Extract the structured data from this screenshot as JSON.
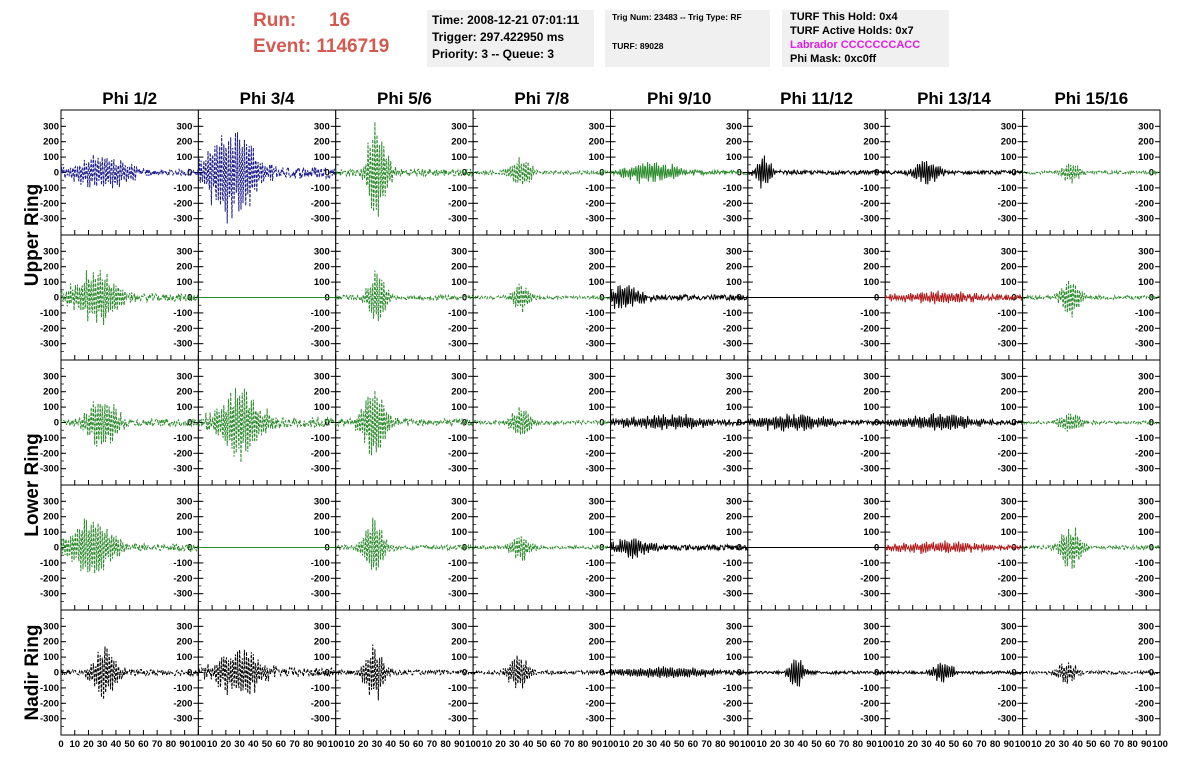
{
  "header": {
    "run_label": "Run:",
    "run_value": "16",
    "event_label": "Event:",
    "event_value": "1146719",
    "time": "Time: 2008-12-21 07:01:11",
    "trigger": "Trigger: 297.422950 ms",
    "priority": "Priority: 3 -- Queue: 3",
    "trig_num": "Trig Num: 23483 -- Trig Type: RF",
    "turf": "TURF: 89028",
    "turf_hold": "TURF This Hold: 0x4",
    "turf_active": "TURF Active Holds: 0x7",
    "labrador": "Labrador CCCCCCCACC",
    "phi_mask": "Phi Mask: 0xc0ff"
  },
  "colors": {
    "title_red": "#d45a50",
    "magenta": "#e020e0",
    "navy": "#1a1a8c",
    "green": "#2a8a2a",
    "black": "#000000",
    "red": "#b01a1a"
  },
  "chart_data": {
    "type": "line",
    "columns": [
      "Phi 1/2",
      "Phi 3/4",
      "Phi 5/6",
      "Phi 7/8",
      "Phi 9/10",
      "Phi 11/12",
      "Phi 13/14",
      "Phi 15/16"
    ],
    "rows": [
      "Upper Ring",
      "Upper Ring",
      "Lower Ring",
      "Lower Ring",
      "Nadir Ring"
    ],
    "row_labels": [
      "Upper Ring",
      "Lower Ring",
      "Nadir Ring"
    ],
    "ylim": [
      -380,
      380
    ],
    "yticks": [
      "300",
      "200",
      "100",
      "0",
      "-100",
      "-200",
      "-300"
    ],
    "xlim": [
      0,
      100
    ],
    "xticks": [
      "0",
      "10",
      "20",
      "30",
      "40",
      "50",
      "60",
      "70",
      "80",
      "90",
      "100"
    ],
    "panels": [
      [
        {
          "color": "navy",
          "dash": true,
          "amp": 130,
          "center": 30,
          "width": 22,
          "noise": 40
        },
        {
          "color": "navy",
          "dash": true,
          "amp": 340,
          "center": 25,
          "width": 20,
          "noise": 80
        },
        {
          "color": "green",
          "dash": true,
          "amp": 360,
          "center": 30,
          "width": 8,
          "noise": 50
        },
        {
          "color": "green",
          "dash": true,
          "amp": 120,
          "center": 35,
          "width": 8,
          "noise": 25
        },
        {
          "color": "green",
          "dash": false,
          "amp": 80,
          "center": 30,
          "width": 20,
          "noise": 30
        },
        {
          "color": "black",
          "dash": false,
          "amp": 120,
          "center": 12,
          "width": 6,
          "noise": 25
        },
        {
          "color": "black",
          "dash": false,
          "amp": 90,
          "center": 30,
          "width": 10,
          "noise": 25
        },
        {
          "color": "green",
          "dash": true,
          "amp": 70,
          "center": 35,
          "width": 8,
          "noise": 20
        }
      ],
      [
        {
          "color": "green",
          "dash": true,
          "amp": 200,
          "center": 25,
          "width": 18,
          "noise": 50
        },
        {
          "color": "green",
          "dash": false,
          "amp": 0,
          "center": 30,
          "width": 8,
          "noise": 0
        },
        {
          "color": "green",
          "dash": true,
          "amp": 200,
          "center": 30,
          "width": 7,
          "noise": 30
        },
        {
          "color": "green",
          "dash": true,
          "amp": 100,
          "center": 35,
          "width": 8,
          "noise": 20
        },
        {
          "color": "black",
          "dash": false,
          "amp": 90,
          "center": 10,
          "width": 15,
          "noise": 35
        },
        {
          "color": "black",
          "dash": false,
          "amp": 0,
          "center": 30,
          "width": 8,
          "noise": 0
        },
        {
          "color": "red",
          "dash": false,
          "amp": 40,
          "center": 40,
          "width": 40,
          "noise": 25
        },
        {
          "color": "green",
          "dash": true,
          "amp": 140,
          "center": 35,
          "width": 8,
          "noise": 25
        }
      ],
      [
        {
          "color": "green",
          "dash": true,
          "amp": 200,
          "center": 30,
          "width": 12,
          "noise": 50
        },
        {
          "color": "green",
          "dash": true,
          "amp": 240,
          "center": 30,
          "width": 18,
          "noise": 70
        },
        {
          "color": "green",
          "dash": true,
          "amp": 250,
          "center": 28,
          "width": 10,
          "noise": 50
        },
        {
          "color": "green",
          "dash": true,
          "amp": 120,
          "center": 35,
          "width": 8,
          "noise": 25
        },
        {
          "color": "black",
          "dash": false,
          "amp": 50,
          "center": 40,
          "width": 40,
          "noise": 25
        },
        {
          "color": "black",
          "dash": false,
          "amp": 60,
          "center": 30,
          "width": 30,
          "noise": 25
        },
        {
          "color": "black",
          "dash": false,
          "amp": 60,
          "center": 40,
          "width": 30,
          "noise": 25
        },
        {
          "color": "green",
          "dash": true,
          "amp": 70,
          "center": 35,
          "width": 10,
          "noise": 20
        }
      ],
      [
        {
          "color": "green",
          "dash": true,
          "amp": 220,
          "center": 22,
          "width": 18,
          "noise": 50
        },
        {
          "color": "green",
          "dash": false,
          "amp": 0,
          "center": 30,
          "width": 8,
          "noise": 0
        },
        {
          "color": "green",
          "dash": true,
          "amp": 220,
          "center": 28,
          "width": 8,
          "noise": 30
        },
        {
          "color": "green",
          "dash": true,
          "amp": 100,
          "center": 35,
          "width": 8,
          "noise": 25
        },
        {
          "color": "black",
          "dash": false,
          "amp": 70,
          "center": 15,
          "width": 15,
          "noise": 35
        },
        {
          "color": "black",
          "dash": false,
          "amp": 0,
          "center": 30,
          "width": 8,
          "noise": 0
        },
        {
          "color": "red",
          "dash": false,
          "amp": 40,
          "center": 40,
          "width": 40,
          "noise": 25
        },
        {
          "color": "green",
          "dash": true,
          "amp": 160,
          "center": 35,
          "width": 8,
          "noise": 25
        }
      ],
      [
        {
          "color": "black",
          "dash": true,
          "amp": 190,
          "center": 32,
          "width": 10,
          "noise": 40
        },
        {
          "color": "black",
          "dash": true,
          "amp": 180,
          "center": 30,
          "width": 18,
          "noise": 60
        },
        {
          "color": "black",
          "dash": true,
          "amp": 200,
          "center": 28,
          "width": 8,
          "noise": 30
        },
        {
          "color": "black",
          "dash": true,
          "amp": 140,
          "center": 33,
          "width": 8,
          "noise": 25
        },
        {
          "color": "black",
          "dash": false,
          "amp": 40,
          "center": 40,
          "width": 40,
          "noise": 20
        },
        {
          "color": "black",
          "dash": false,
          "amp": 120,
          "center": 35,
          "width": 6,
          "noise": 20
        },
        {
          "color": "black",
          "dash": false,
          "amp": 80,
          "center": 42,
          "width": 8,
          "noise": 20
        },
        {
          "color": "black",
          "dash": true,
          "amp": 80,
          "center": 32,
          "width": 8,
          "noise": 20
        }
      ]
    ]
  }
}
